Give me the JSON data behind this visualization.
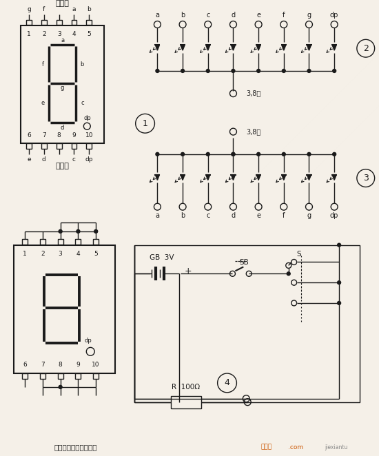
{
  "bg_color": "#f5f0e8",
  "fg_color": "#1a1a1a",
  "seg_labels": [
    "a",
    "b",
    "c",
    "d",
    "e",
    "f",
    "g",
    "dp"
  ],
  "seg_pin_top": [
    "g",
    "f",
    "",
    "a",
    "b"
  ],
  "seg_pin_bot": [
    "e",
    "d",
    "",
    "c",
    "dp"
  ],
  "footer_text": "电子制作天地收藏整理",
  "note_38": "3,8脚",
  "gb_label": "GB  3V",
  "r_label": "R  100Ω",
  "sb_label": "SB",
  "s_label": "S",
  "dianyu_jiao": "电源脚"
}
